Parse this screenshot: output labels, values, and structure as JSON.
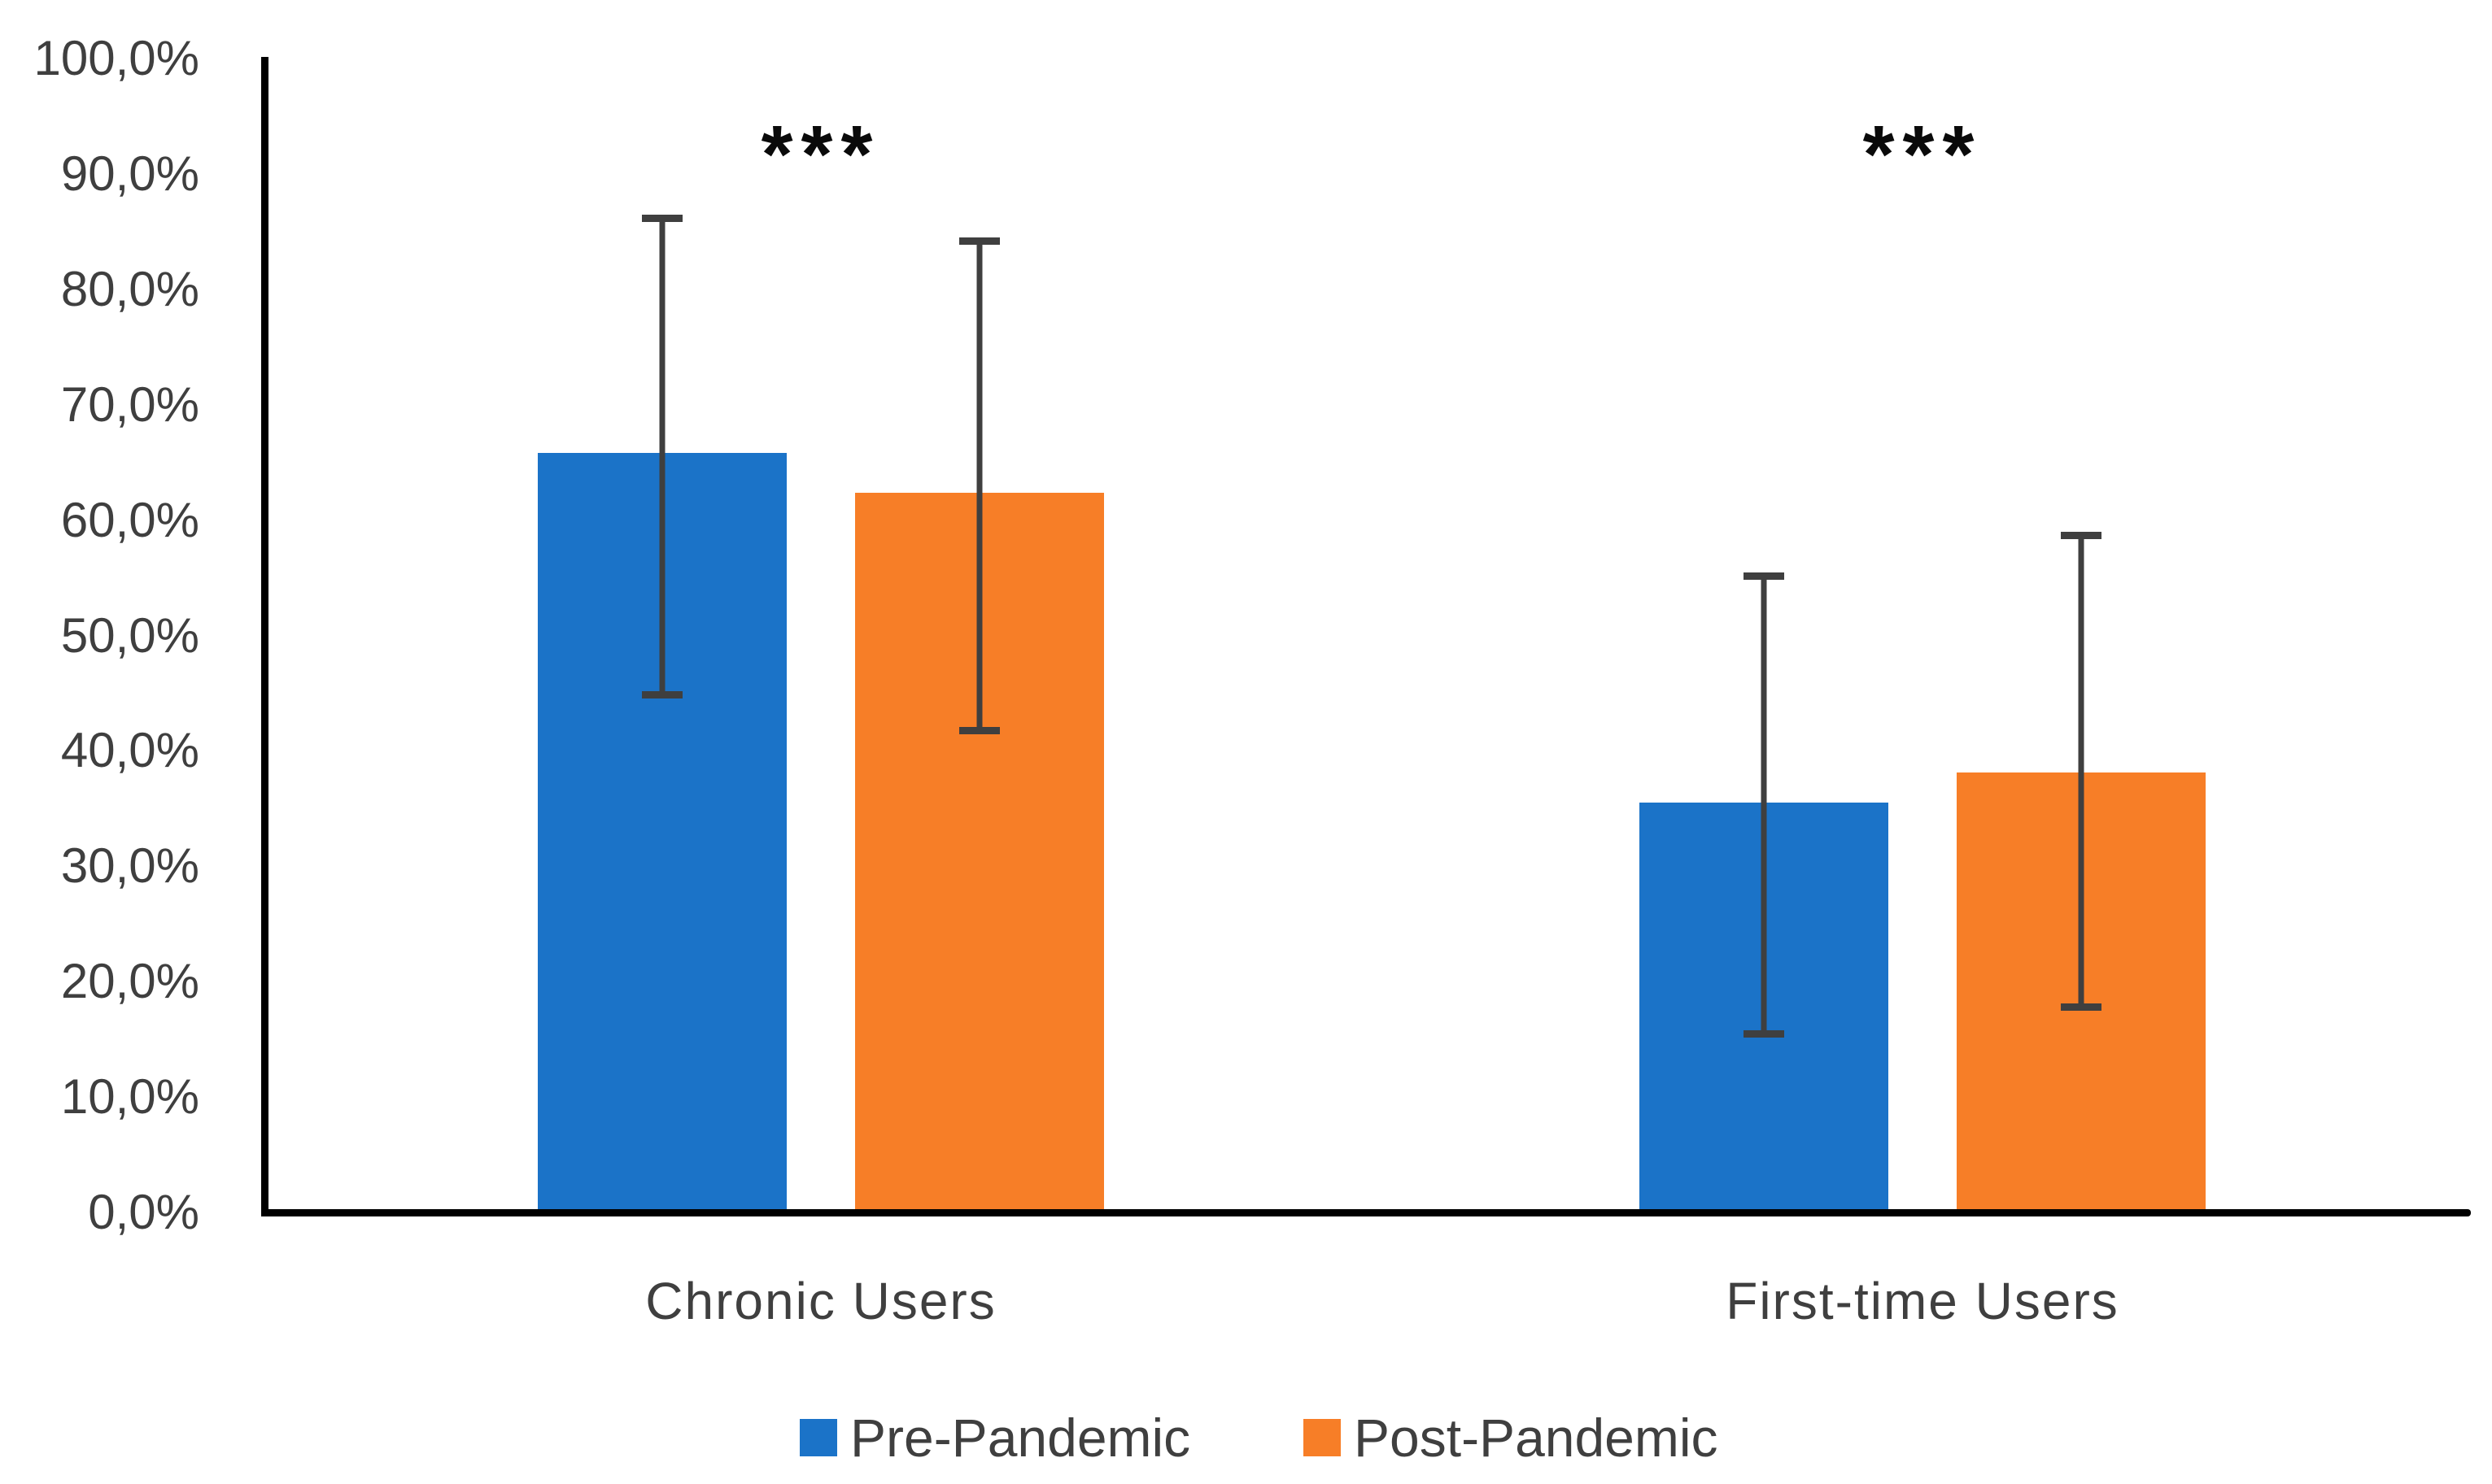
{
  "chart_data": {
    "type": "bar",
    "title": "",
    "xlabel": "",
    "ylabel": "",
    "categories": [
      "Chronic Users",
      "First-time Users"
    ],
    "series": [
      {
        "name": "Pre-Pandemic",
        "color": "#1b73c8",
        "values": [
          65.8,
          35.5
        ],
        "error_high": [
          86.2,
          55.2
        ],
        "error_low": [
          44.9,
          15.5
        ]
      },
      {
        "name": "Post-Pandemic",
        "color": "#f77e27",
        "values": [
          62.4,
          38.1
        ],
        "error_high": [
          84.2,
          58.7
        ],
        "error_low": [
          41.8,
          17.8
        ]
      }
    ],
    "ylim": [
      0,
      100
    ],
    "ytick_step": 10,
    "ytick_labels": [
      "0,0%",
      "10,0%",
      "20,0%",
      "30,0%",
      "40,0%",
      "50,0%",
      "60,0%",
      "70,0%",
      "80,0%",
      "90,0%",
      "100,0%"
    ],
    "grid": false,
    "legend_position": "bottom",
    "annotations": [
      {
        "text": "***",
        "category_index": 0
      },
      {
        "text": "***",
        "category_index": 1
      }
    ],
    "colors": {
      "axis": "#000000",
      "error_bar": "#3f3f3f",
      "tick_text": "#3f3f3f",
      "annotation_text": "#0a0a0a"
    }
  }
}
